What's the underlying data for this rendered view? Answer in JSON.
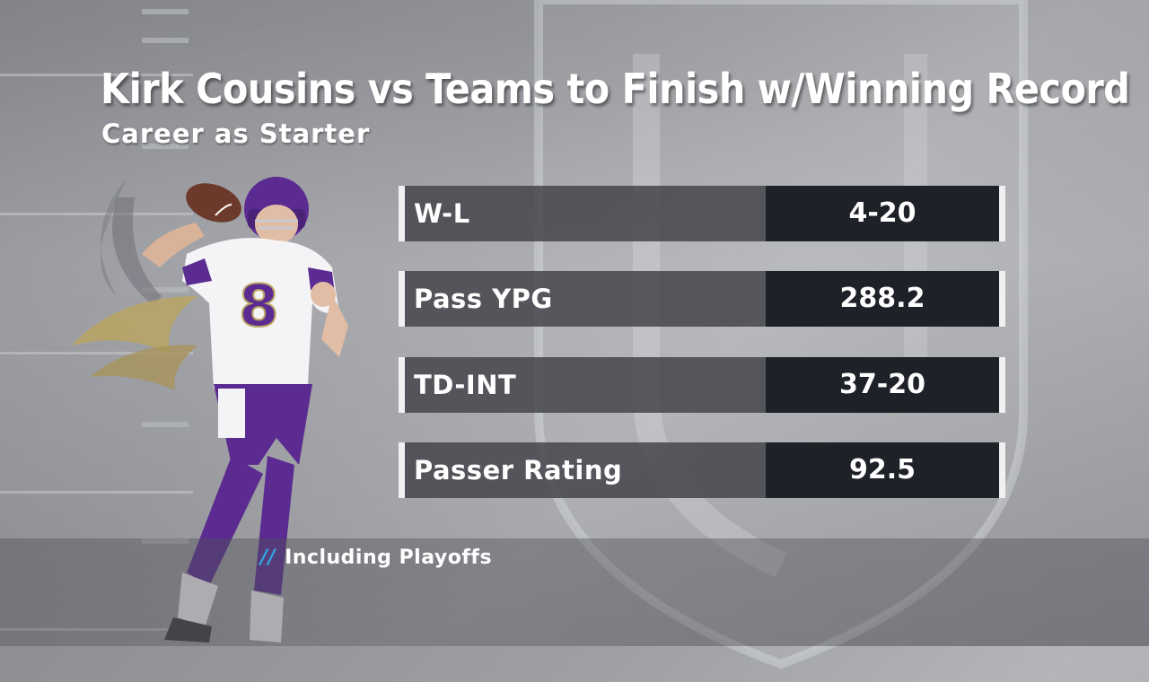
{
  "graphic": {
    "title": "Kirk Cousins vs Teams to Finish w/Winning Record",
    "subtitle": "Career as Starter"
  },
  "stats": [
    {
      "label": "W-L",
      "value": "4-20"
    },
    {
      "label": "Pass YPG",
      "value": "288.2"
    },
    {
      "label": "TD-INT",
      "value": "37-20"
    },
    {
      "label": "Passer Rating",
      "value": "92.5"
    }
  ],
  "footnote": {
    "marker": "//",
    "text": "Including Playoffs"
  },
  "colors": {
    "value_panel": "#1f2129",
    "label_panel": "#48494f",
    "accent_blue": "#2fa6e0",
    "jersey_purple": "#5b2b91",
    "logo_gold": "#b9a463"
  },
  "icons": {
    "team_logo": "vikings-horn-logo",
    "player": "quarterback-throwing-figure"
  }
}
